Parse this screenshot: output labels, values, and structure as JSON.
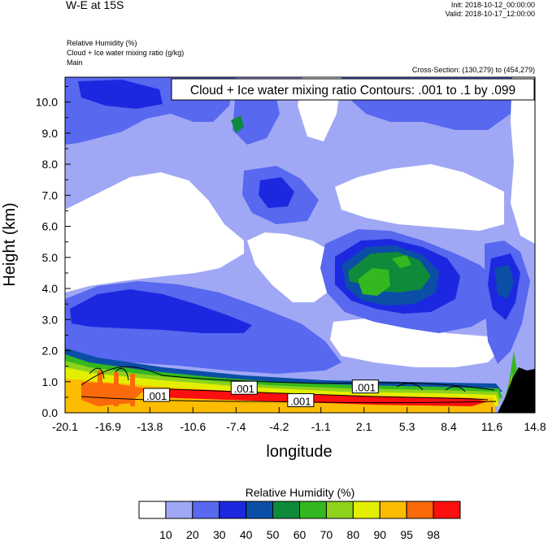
{
  "header": {
    "title": "W-E at 15S",
    "init": "Init: 2018-10-12_00:00:00",
    "valid": "Valid: 2018-10-17_12:00:00",
    "fields": [
      "Relative Humidity   (%)",
      "Cloud + Ice water mixing ratio   (g/kg)",
      "Main"
    ],
    "cross_section": "Cross-Section: (130,279) to (454,279)"
  },
  "chart_data": {
    "type": "heatmap",
    "xlabel": "longitude",
    "ylabel": "Height (km)",
    "xlim": [
      -20.1,
      14.8
    ],
    "ylim": [
      0.0,
      10.8
    ],
    "x_ticks": [
      "-20.1",
      "-16.9",
      "-13.8",
      "-10.6",
      "-7.4",
      "-4.2",
      "-1.1",
      "2.1",
      "5.3",
      "8.4",
      "11.6",
      "14.8"
    ],
    "y_ticks": [
      "0.0",
      "1.0",
      "2.0",
      "3.0",
      "4.0",
      "5.0",
      "6.0",
      "7.0",
      "8.0",
      "9.0",
      "10.0"
    ],
    "contour_title": "Cloud + Ice water mixing ratio Contours: .001 to .1 by .099",
    "contour_labels": [
      {
        "text": ".001",
        "x": -13.3,
        "y": 0.55
      },
      {
        "text": ".001",
        "x": -6.8,
        "y": 0.78
      },
      {
        "text": ".001",
        "x": -2.6,
        "y": 0.38
      },
      {
        "text": ".001",
        "x": 2.2,
        "y": 0.82
      }
    ],
    "colorbar": {
      "title": "Relative Humidity  (%)",
      "levels": [
        "10",
        "20",
        "30",
        "40",
        "50",
        "60",
        "70",
        "80",
        "90",
        "95",
        "98"
      ],
      "colors": [
        "#ffffff",
        "#a0a8f5",
        "#5868ef",
        "#1c28e0",
        "#0b4ea6",
        "#0e8a3a",
        "#34b81f",
        "#8ed21c",
        "#e4ee00",
        "#fcbc00",
        "#fa6a0a",
        "#fb0f0f"
      ]
    }
  }
}
